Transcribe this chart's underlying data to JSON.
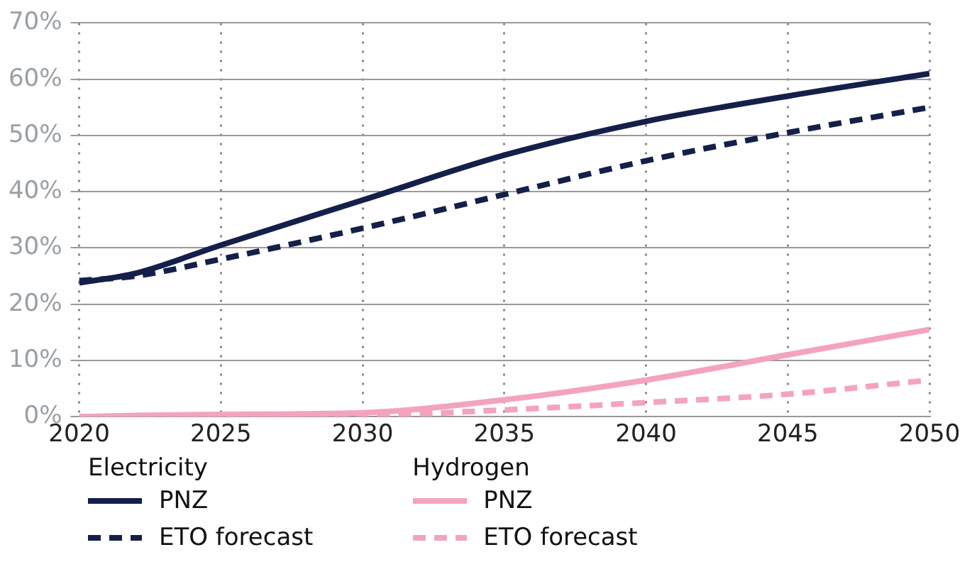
{
  "chart_data": {
    "type": "line",
    "x": [
      2020,
      2022,
      2025,
      2030,
      2035,
      2040,
      2045,
      2050
    ],
    "series": [
      {
        "name": "PNZ",
        "color": "#14204a",
        "line_style": "solid",
        "values": [
          23.8,
          25.5,
          30.5,
          38.5,
          46.5,
          52.5,
          57,
          61
        ]
      },
      {
        "name": "ETO forecast",
        "color": "#14204a",
        "line_style": "dashed",
        "values": [
          24.2,
          25,
          28,
          33.5,
          39.5,
          45.5,
          50.5,
          55
        ]
      },
      {
        "name": "PNZ",
        "color": "#f4a3bf",
        "line_style": "solid",
        "values": [
          0,
          0.2,
          0.4,
          0.7,
          3,
          6.5,
          11,
          15.5
        ]
      },
      {
        "name": "ETO forecast",
        "color": "#f4a3bf",
        "line_style": "dashed",
        "values": [
          0,
          0,
          0.1,
          0.2,
          1.2,
          2.5,
          4,
          6.5
        ]
      }
    ],
    "annotations": [
      "Electricity",
      "Hydrogen"
    ],
    "xlim": [
      2020,
      2050
    ],
    "xticks": [
      2020,
      2025,
      2030,
      2035,
      2040,
      2045,
      2050
    ],
    "ylim": [
      0,
      70
    ],
    "yticks": [
      {
        "value": 0,
        "label": "0%"
      },
      {
        "value": 10,
        "label": "10%"
      },
      {
        "value": 20,
        "label": "20%"
      },
      {
        "value": 30,
        "label": "30%"
      },
      {
        "value": 40,
        "label": "40%"
      },
      {
        "value": 50,
        "label": "50%"
      },
      {
        "value": 60,
        "label": "60%"
      },
      {
        "value": 70,
        "label": "70%"
      }
    ],
    "grid": true,
    "legend": "bottom",
    "marker": "none"
  }
}
